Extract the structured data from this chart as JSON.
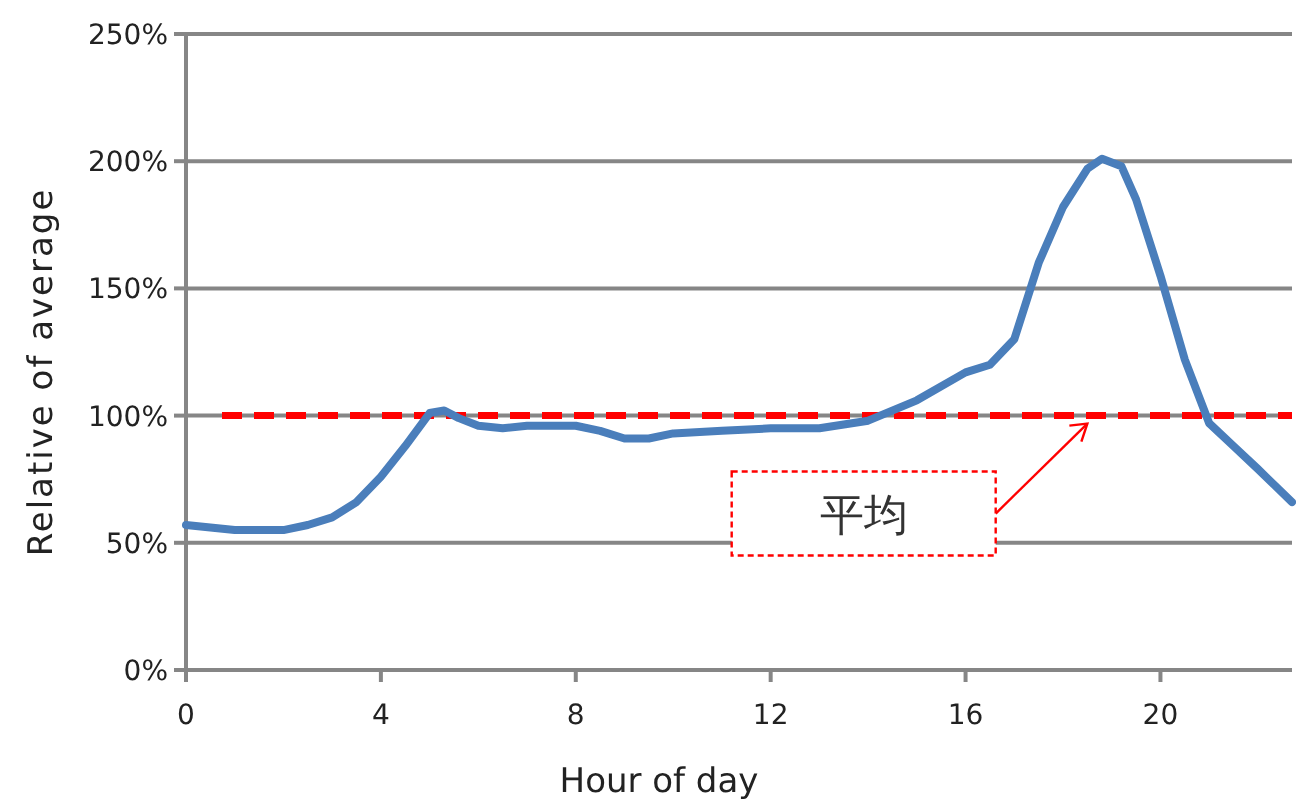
{
  "chart_data": {
    "type": "line",
    "xlabel": "Hour of day",
    "ylabel": "Relative of average",
    "x": [
      0,
      0.5,
      1,
      1.5,
      2,
      2.5,
      3,
      3.5,
      4,
      4.5,
      5,
      5.3,
      5.6,
      6,
      6.5,
      7,
      8,
      8.5,
      9,
      9.5,
      10,
      11,
      12,
      13,
      14,
      15,
      16,
      16.5,
      17,
      17.5,
      18,
      18.5,
      18.8,
      19.2,
      19.5,
      20,
      20.5,
      21,
      21.5,
      22,
      22.7
    ],
    "series": [
      {
        "color": "#4a7ebb",
        "values": [
          57,
          56,
          55,
          55,
          55,
          57,
          60,
          66,
          76,
          88,
          101,
          102,
          99,
          96,
          95,
          96,
          96,
          94,
          91,
          91,
          93,
          94,
          95,
          95,
          98,
          106,
          117,
          120,
          130,
          160,
          182,
          197,
          201,
          198,
          185,
          155,
          122,
          97,
          88,
          79,
          66
        ]
      }
    ],
    "xlim": [
      0,
      22.7
    ],
    "ylim": [
      0,
      250
    ],
    "xticks": [
      0,
      4,
      8,
      12,
      16,
      20
    ],
    "yticks": [
      {
        "value": 0,
        "label": "0%"
      },
      {
        "value": 50,
        "label": "50%"
      },
      {
        "value": 100,
        "label": "100%"
      },
      {
        "value": 150,
        "label": "150%"
      },
      {
        "value": 200,
        "label": "200%"
      },
      {
        "value": 250,
        "label": "250%"
      }
    ],
    "ref_lines": [
      {
        "axis": "y",
        "value": 100,
        "label": "平均",
        "color": "#ff0000",
        "line_style": "dashed"
      }
    ],
    "grid": "y",
    "marker": "none",
    "line_style": "solid"
  }
}
